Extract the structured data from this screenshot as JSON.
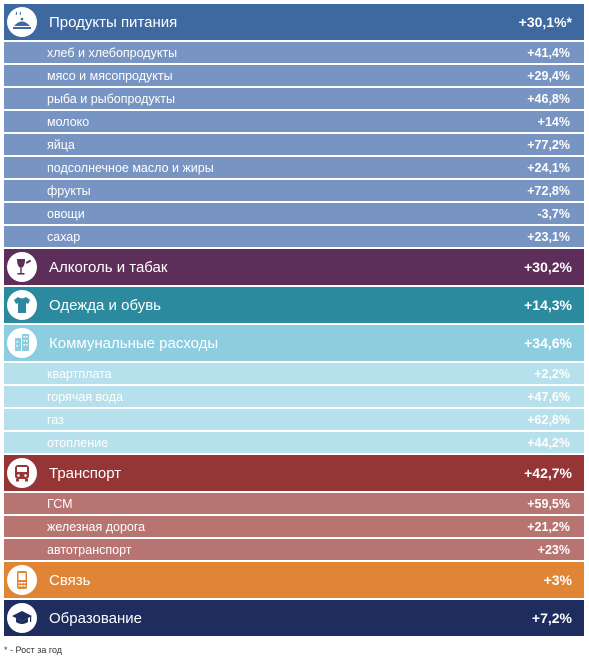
{
  "footnote": "* - Рост за год",
  "categories": [
    {
      "label": "Продукты питания",
      "value": "+30,1%*",
      "icon": "food-icon",
      "color": "#3e68a0",
      "sub_color": "#7794c2",
      "items": [
        {
          "label": "хлеб и хлебопродукты",
          "value": "+41,4%"
        },
        {
          "label": "мясо и мясопродукты",
          "value": "+29,4%"
        },
        {
          "label": "рыба и рыбопродукты",
          "value": "+46,8%"
        },
        {
          "label": "молоко",
          "value": "+14%"
        },
        {
          "label": "яйца",
          "value": "+77,2%"
        },
        {
          "label": "подсолнечное масло и жиры",
          "value": "+24,1%"
        },
        {
          "label": "фрукты",
          "value": "+72,8%"
        },
        {
          "label": "овощи",
          "value": "-3,7%"
        },
        {
          "label": "сахар",
          "value": "+23,1%"
        }
      ]
    },
    {
      "label": "Алкоголь и табак",
      "value": "+30,2%",
      "icon": "wine-glass-icon",
      "color": "#5e2e5a",
      "sub_color": "#8a5c86",
      "items": []
    },
    {
      "label": "Одежда и обувь",
      "value": "+14,3%",
      "icon": "shirt-icon",
      "color": "#2c8a9e",
      "sub_color": "#6fb5c4",
      "items": []
    },
    {
      "label": "Коммунальные расходы",
      "value": "+34,6%",
      "icon": "building-icon",
      "color": "#8ccde0",
      "sub_color": "#b6e0ec",
      "items": [
        {
          "label": "квартплата",
          "value": "+2,2%"
        },
        {
          "label": "горячая вода",
          "value": "+47,6%"
        },
        {
          "label": "газ",
          "value": "+62,8%"
        },
        {
          "label": "отопление",
          "value": "+44,2%"
        }
      ]
    },
    {
      "label": "Транспорт",
      "value": "+42,7%",
      "icon": "bus-icon",
      "color": "#963535",
      "sub_color": "#b87470",
      "items": [
        {
          "label": "ГСМ",
          "value": "+59,5%"
        },
        {
          "label": "железная дорога",
          "value": "+21,2%"
        },
        {
          "label": "автотранспорт",
          "value": "+23%"
        }
      ]
    },
    {
      "label": "Связь",
      "value": "+3%",
      "icon": "mobile-phone-icon",
      "color": "#e08535",
      "sub_color": "#eab07a",
      "items": []
    },
    {
      "label": "Образование",
      "value": "+7,2%",
      "icon": "graduation-cap-icon",
      "color": "#1e2c5e",
      "sub_color": "#4a5a8c",
      "items": []
    }
  ]
}
